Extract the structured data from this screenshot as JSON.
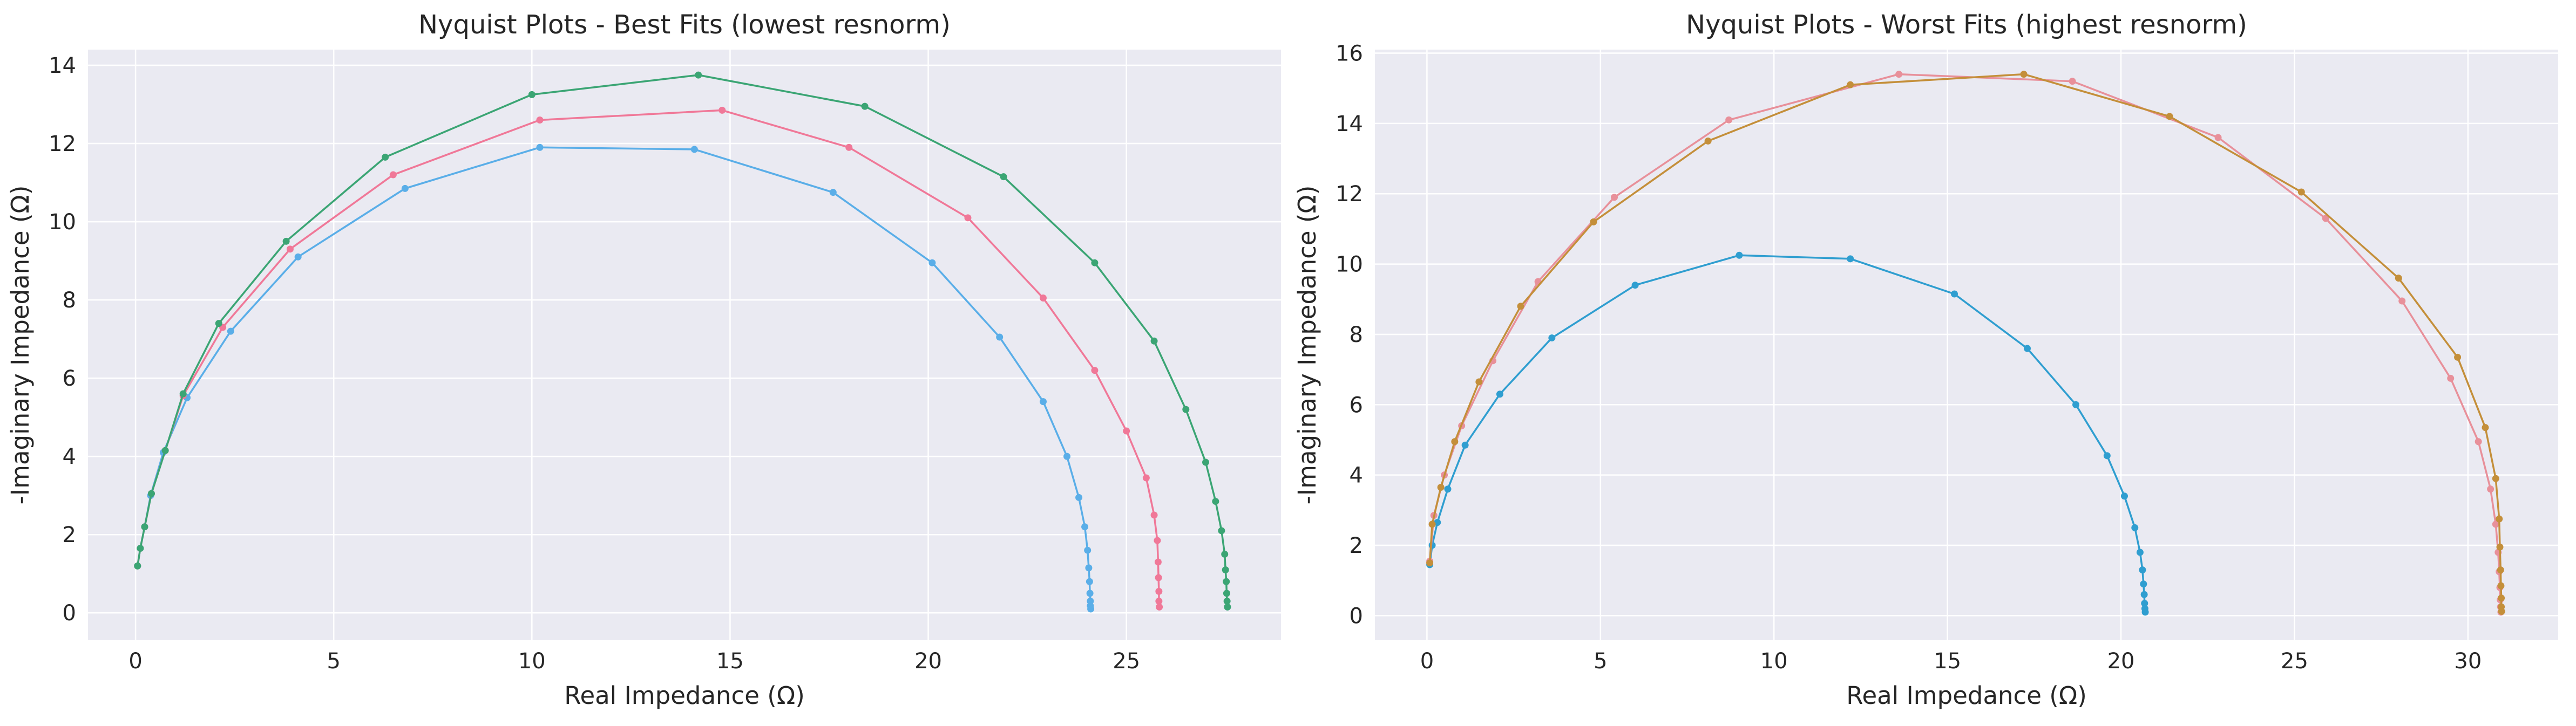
{
  "chart_data": [
    {
      "type": "line",
      "title": "Nyquist Plots - Best Fits (lowest resnorm)",
      "xlabel": "Real Impedance (Ω)",
      "ylabel": "-Imaginary Impedance (Ω)",
      "xlim": [
        -1.2,
        28.9
      ],
      "ylim": [
        -0.7,
        14.4
      ],
      "xticks": [
        0,
        5,
        10,
        15,
        20,
        25
      ],
      "yticks": [
        0,
        2,
        4,
        6,
        8,
        10,
        12,
        14
      ],
      "grid": true,
      "series": [
        {
          "color": "#5aaee8",
          "x": [
            0.05,
            0.12,
            0.23,
            0.38,
            0.7,
            1.3,
            2.4,
            4.1,
            6.8,
            10.2,
            14.1,
            17.6,
            20.1,
            21.8,
            22.9,
            23.5,
            23.8,
            23.95,
            24.02,
            24.05,
            24.07,
            24.08,
            24.09,
            24.09,
            24.1
          ],
          "y": [
            1.2,
            1.65,
            2.2,
            3.0,
            4.1,
            5.5,
            7.2,
            9.1,
            10.85,
            11.9,
            11.85,
            10.75,
            8.95,
            7.05,
            5.4,
            4.0,
            2.95,
            2.2,
            1.6,
            1.15,
            0.8,
            0.5,
            0.3,
            0.18,
            0.1
          ]
        },
        {
          "color": "#f07898",
          "x": [
            0.05,
            0.12,
            0.23,
            0.4,
            0.75,
            1.2,
            2.2,
            3.9,
            6.5,
            10.2,
            14.8,
            18.0,
            21.0,
            22.9,
            24.2,
            25.0,
            25.5,
            25.7,
            25.78,
            25.8,
            25.81,
            25.82,
            25.82,
            25.83
          ],
          "y": [
            1.2,
            1.65,
            2.2,
            3.05,
            4.15,
            5.55,
            7.3,
            9.3,
            11.2,
            12.6,
            12.85,
            11.9,
            10.1,
            8.05,
            6.2,
            4.65,
            3.45,
            2.5,
            1.85,
            1.3,
            0.9,
            0.55,
            0.3,
            0.15
          ]
        },
        {
          "color": "#3ba574",
          "x": [
            0.05,
            0.12,
            0.23,
            0.4,
            0.75,
            1.2,
            2.1,
            3.8,
            6.3,
            10.0,
            14.2,
            18.4,
            21.9,
            24.2,
            25.7,
            26.5,
            27.0,
            27.25,
            27.4,
            27.48,
            27.5,
            27.52,
            27.53,
            27.54,
            27.55
          ],
          "y": [
            1.2,
            1.65,
            2.2,
            3.05,
            4.15,
            5.6,
            7.4,
            9.5,
            11.65,
            13.25,
            13.75,
            12.95,
            11.15,
            8.95,
            6.95,
            5.2,
            3.85,
            2.85,
            2.1,
            1.5,
            1.1,
            0.8,
            0.5,
            0.3,
            0.15
          ]
        }
      ]
    },
    {
      "type": "line",
      "title": "Nyquist Plots - Worst Fits (highest resnorm)",
      "xlabel": "Real Impedance (Ω)",
      "ylabel": "-Imaginary Impedance (Ω)",
      "xlim": [
        -1.5,
        32.6
      ],
      "ylim": [
        -0.7,
        16.1
      ],
      "xticks": [
        0,
        5,
        10,
        15,
        20,
        25,
        30
      ],
      "yticks": [
        0,
        2,
        4,
        6,
        8,
        10,
        12,
        14,
        16
      ],
      "grid": true,
      "series": [
        {
          "color": "#2f9ed0",
          "x": [
            0.08,
            0.15,
            0.3,
            0.6,
            1.1,
            2.1,
            3.6,
            6.0,
            9.0,
            12.2,
            15.2,
            17.3,
            18.7,
            19.6,
            20.1,
            20.4,
            20.55,
            20.62,
            20.65,
            20.67,
            20.68,
            20.69,
            20.7
          ],
          "y": [
            1.45,
            2.0,
            2.65,
            3.6,
            4.85,
            6.3,
            7.9,
            9.4,
            10.25,
            10.15,
            9.15,
            7.6,
            6.0,
            4.55,
            3.4,
            2.5,
            1.8,
            1.3,
            0.9,
            0.6,
            0.35,
            0.2,
            0.1
          ]
        },
        {
          "color": "#e8909a",
          "x": [
            0.08,
            0.2,
            0.5,
            1.0,
            1.9,
            3.2,
            5.4,
            8.7,
            13.6,
            18.6,
            22.8,
            25.9,
            28.1,
            29.5,
            30.3,
            30.65,
            30.8,
            30.87,
            30.9,
            30.92,
            30.93,
            30.94,
            30.95
          ],
          "y": [
            1.55,
            2.85,
            4.0,
            5.4,
            7.25,
            9.5,
            11.9,
            14.1,
            15.4,
            15.2,
            13.6,
            11.3,
            8.95,
            6.75,
            4.95,
            3.6,
            2.6,
            1.8,
            1.25,
            0.8,
            0.45,
            0.25,
            0.1
          ]
        },
        {
          "color": "#c48f3a",
          "x": [
            0.08,
            0.15,
            0.4,
            0.8,
            1.5,
            2.7,
            4.8,
            8.1,
            12.2,
            17.2,
            21.4,
            25.2,
            28.0,
            29.7,
            30.5,
            30.8,
            30.9,
            30.92,
            30.94,
            30.95,
            30.96,
            30.96,
            30.97
          ],
          "y": [
            1.5,
            2.6,
            3.65,
            4.95,
            6.65,
            8.8,
            11.2,
            13.5,
            15.1,
            15.4,
            14.2,
            12.05,
            9.6,
            7.35,
            5.35,
            3.9,
            2.75,
            1.95,
            1.3,
            0.85,
            0.5,
            0.25,
            0.12
          ]
        }
      ]
    }
  ]
}
